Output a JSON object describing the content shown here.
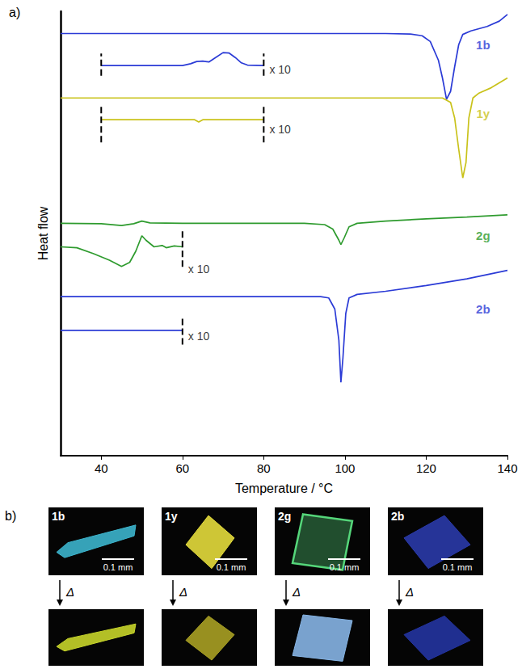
{
  "chart_data": {
    "type": "line",
    "panel": "a)",
    "x_label": "Temperature / °C",
    "y_label": "Heat flow",
    "xlim": [
      30,
      140
    ],
    "xticks": [
      40,
      60,
      80,
      100,
      120,
      140
    ],
    "ylim": [
      0,
      100
    ],
    "yticks": [],
    "tick_labels": "x",
    "grid": false,
    "series": [
      {
        "name": "1b",
        "color": "#2b3bd6",
        "label_at": [
          134,
          92.5
        ],
        "x": [
          30,
          110,
          116,
          119,
          121,
          123,
          124,
          125,
          126,
          127,
          128,
          129,
          131,
          135,
          138,
          140
        ],
        "values": [
          95,
          95,
          94.9,
          94.5,
          93.2,
          89,
          85,
          80.2,
          82,
          87.5,
          92.5,
          94.8,
          95.6,
          96.6,
          97.8,
          99.3
        ]
      },
      {
        "color": "#2b3bd6",
        "x": [
          40,
          60,
          62,
          63.5,
          65,
          66.5,
          68,
          70,
          71.5,
          73,
          74.5,
          76,
          80
        ],
        "values": [
          87.8,
          87.8,
          88.2,
          88.7,
          88.8,
          88.6,
          89.5,
          90.7,
          90.6,
          89.6,
          88.4,
          87.9,
          87.8
        ]
      },
      {
        "name": "1y",
        "color": "#c9c21a",
        "label_at": [
          134,
          77
        ],
        "x": [
          30,
          124,
          126,
          127,
          128,
          129,
          129.8,
          130.5,
          131.5,
          133,
          136,
          140
        ],
        "values": [
          80.5,
          80.5,
          79.5,
          76,
          69,
          62.5,
          66,
          76,
          80.5,
          81.6,
          82.8,
          85
        ]
      },
      {
        "color": "#c9c21a",
        "x": [
          40,
          63,
          64,
          65,
          80
        ],
        "values": [
          75.6,
          75.6,
          75.1,
          75.6,
          75.6
        ]
      },
      {
        "name": "2g",
        "color": "#2e9b2e",
        "label_at": [
          134,
          49.5
        ],
        "x": [
          30,
          40,
          45,
          48,
          50,
          52,
          60,
          90,
          95,
          97,
          98.5,
          99,
          99.8,
          101,
          103,
          110,
          120,
          130,
          140
        ],
        "values": [
          52.3,
          52.2,
          51.8,
          52.2,
          52.8,
          52.4,
          52.3,
          52.3,
          52,
          51,
          48.5,
          47.5,
          49,
          51.5,
          52.3,
          52.8,
          53.3,
          53.7,
          54.2
        ]
      },
      {
        "color": "#2e9b2e",
        "x": [
          30,
          34,
          38,
          42,
          45,
          47,
          48.5,
          50,
          51,
          53,
          55,
          56,
          58,
          60
        ],
        "values": [
          47,
          46.8,
          45.5,
          44,
          42.6,
          43.5,
          46,
          49.5,
          48.5,
          47,
          47.3,
          46.8,
          47.2,
          47
        ]
      },
      {
        "name": "2b",
        "color": "#2b3bd6",
        "label_at": [
          134,
          33
        ],
        "x": [
          30,
          94,
          96,
          97.5,
          98.5,
          99,
          99.5,
          100.2,
          101,
          103,
          110,
          120,
          130,
          140
        ],
        "values": [
          35.8,
          35.8,
          35.5,
          33,
          26,
          16.5,
          22,
          32,
          35.5,
          36.3,
          37,
          38.3,
          39.8,
          41.7
        ]
      },
      {
        "color": "#2b3bd6",
        "x": [
          30,
          60
        ],
        "values": [
          28.2,
          28.2
        ]
      }
    ],
    "guides": [
      {
        "x": 40,
        "y": [
          85.5,
          90.5
        ]
      },
      {
        "x": 80,
        "y": [
          85.5,
          90.5
        ]
      },
      {
        "x": 40,
        "y": [
          70.5,
          78.5
        ]
      },
      {
        "x": 80,
        "y": [
          70.5,
          78.5
        ]
      },
      {
        "x": 60,
        "y": [
          42.5,
          50.5
        ]
      },
      {
        "x": 60,
        "y": [
          25,
          31
        ]
      }
    ],
    "annotations": [
      {
        "text": "x 10",
        "x": 81,
        "y": 87
      },
      {
        "text": "x 10",
        "x": 81,
        "y": 73.5
      },
      {
        "text": "x 10",
        "x": 61,
        "y": 42
      },
      {
        "text": "x 10",
        "x": 61,
        "y": 27
      }
    ]
  },
  "panel_b": {
    "panel": "b)",
    "arrow_label": "Δ",
    "samples": [
      {
        "name": "1b",
        "scale_bar": "0.1 mm",
        "before": {
          "color": "#3cb4cc"
        },
        "after": {
          "color": "#c6d42a"
        }
      },
      {
        "name": "1y",
        "scale_bar": "0.1 mm",
        "before": {
          "color": "#e4dc3c"
        },
        "after": {
          "color": "#a8a024"
        }
      },
      {
        "name": "2g",
        "scale_bar": "0.1 mm",
        "before": {
          "color": "#55d67a"
        },
        "after": {
          "color": "#86b4e4"
        }
      },
      {
        "name": "2b",
        "scale_bar": "0.1 mm",
        "before": {
          "color": "#2a3aa8"
        },
        "after": {
          "color": "#2434a0"
        }
      }
    ]
  }
}
